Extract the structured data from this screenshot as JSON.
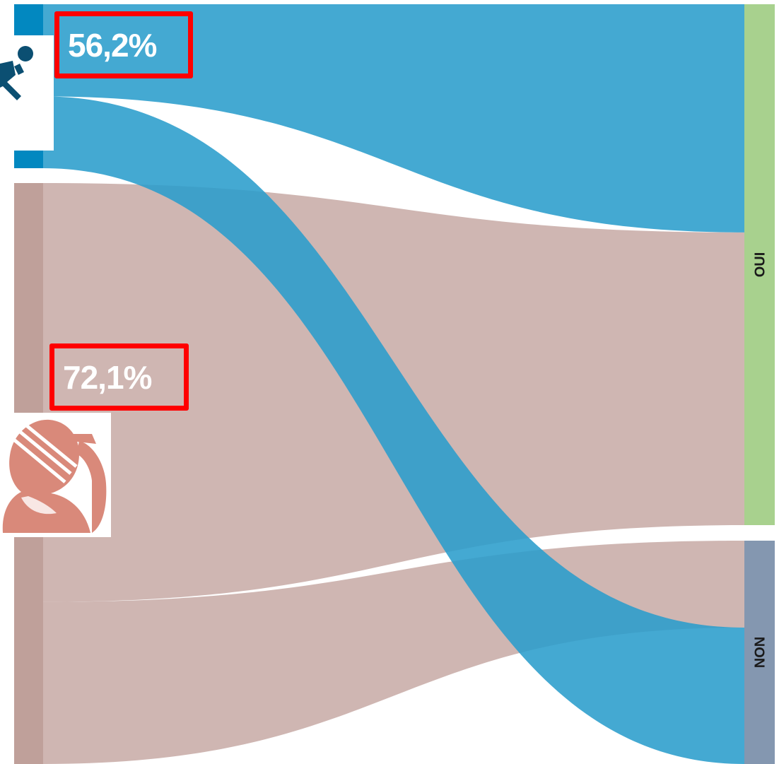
{
  "chart_data": {
    "type": "sankey",
    "sources": [
      {
        "id": "blue",
        "icon": "running-person-icon",
        "color": "#0288c0"
      },
      {
        "id": "rose",
        "icon": "woman-with-pen-icon",
        "color": "#bfa09a"
      }
    ],
    "targets": [
      {
        "id": "oui",
        "label": "OUI",
        "color": "#a8d18e"
      },
      {
        "id": "non",
        "label": "NON",
        "color": "#8497b0"
      }
    ],
    "flows": [
      {
        "source": "blue",
        "target": "oui",
        "value": 56.2,
        "label": "56,2%",
        "color": "#2a9dcc"
      },
      {
        "source": "blue",
        "target": "non",
        "value": 43.8,
        "color": "#2a9dcc"
      },
      {
        "source": "rose",
        "target": "oui",
        "value": 72.1,
        "label": "72,1%",
        "color": "#c5a6a1"
      },
      {
        "source": "rose",
        "target": "non",
        "value": 27.9,
        "color": "#c5a6a1"
      }
    ],
    "colors": {
      "highlight_box": "#ff0000",
      "rose_icon": "#d9897a",
      "blue_icon": "#0b4f72"
    }
  }
}
